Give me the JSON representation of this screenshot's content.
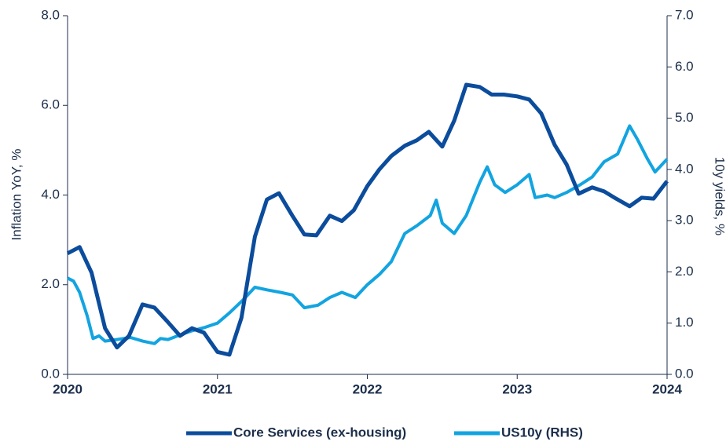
{
  "chart_data": {
    "type": "line",
    "y_label": "Inflation YoY, %",
    "y2_label": "10y yields, %",
    "xlim": [
      2020,
      2024
    ],
    "xticks": [
      2020,
      2021,
      2022,
      2023,
      2024
    ],
    "ylim": [
      0,
      8
    ],
    "yticks": [
      {
        "value": 0,
        "label": "0.0"
      },
      {
        "value": 2,
        "label": "2.0"
      },
      {
        "value": 4,
        "label": "4.0"
      },
      {
        "value": 6,
        "label": "6.0"
      },
      {
        "value": 8,
        "label": "8.0"
      }
    ],
    "y2lim": [
      0,
      7
    ],
    "y2ticks": [
      {
        "value": 0,
        "label": "0.0"
      },
      {
        "value": 1,
        "label": "1.0"
      },
      {
        "value": 2,
        "label": "2.0"
      },
      {
        "value": 3,
        "label": "3.0"
      },
      {
        "value": 4,
        "label": "4.0"
      },
      {
        "value": 5,
        "label": "5.0"
      },
      {
        "value": 6,
        "label": "6.0"
      },
      {
        "value": 7,
        "label": "7.0"
      }
    ],
    "series": [
      {
        "name": "Core Services (ex-housing)",
        "color": "#0b4c9c",
        "x": [
          2020.0,
          2020.08,
          2020.16,
          2020.25,
          2020.33,
          2020.41,
          2020.5,
          2020.58,
          2020.66,
          2020.75,
          2020.83,
          2020.91,
          2021.0,
          2021.08,
          2021.16,
          2021.25,
          2021.33,
          2021.41,
          2021.5,
          2021.58,
          2021.66,
          2021.75,
          2021.83,
          2021.91,
          2022.0,
          2022.08,
          2022.16,
          2022.25,
          2022.33,
          2022.41,
          2022.5,
          2022.58,
          2022.66,
          2022.75,
          2022.83,
          2022.91,
          2023.0,
          2023.08,
          2023.16,
          2023.25,
          2023.33,
          2023.41,
          2023.5,
          2023.58,
          2023.66,
          2023.75,
          2023.83,
          2023.91,
          2024.0
        ],
        "values": [
          2.7,
          2.84,
          2.27,
          1.03,
          0.6,
          0.86,
          1.56,
          1.49,
          1.2,
          0.86,
          1.03,
          0.93,
          0.5,
          0.44,
          1.26,
          3.07,
          3.9,
          4.04,
          3.54,
          3.12,
          3.1,
          3.54,
          3.42,
          3.66,
          4.2,
          4.57,
          4.87,
          5.1,
          5.22,
          5.41,
          5.08,
          5.66,
          6.46,
          6.41,
          6.24,
          6.24,
          6.2,
          6.13,
          5.82,
          5.12,
          4.68,
          4.03,
          4.17,
          4.08,
          3.92,
          3.75,
          3.94,
          3.92,
          4.31
        ]
      },
      {
        "name": "US10y (RHS)",
        "color": "#12a4e0",
        "axis": "y2",
        "x": [
          2020.0,
          2020.04,
          2020.08,
          2020.13,
          2020.17,
          2020.21,
          2020.25,
          2020.33,
          2020.42,
          2020.5,
          2020.58,
          2020.62,
          2020.67,
          2020.75,
          2020.83,
          2020.92,
          2021.0,
          2021.08,
          2021.17,
          2021.25,
          2021.33,
          2021.42,
          2021.5,
          2021.58,
          2021.67,
          2021.75,
          2021.83,
          2021.92,
          2022.0,
          2022.08,
          2022.16,
          2022.25,
          2022.33,
          2022.42,
          2022.46,
          2022.5,
          2022.58,
          2022.66,
          2022.75,
          2022.8,
          2022.85,
          2022.92,
          2023.0,
          2023.08,
          2023.12,
          2023.2,
          2023.25,
          2023.33,
          2023.42,
          2023.5,
          2023.58,
          2023.67,
          2023.75,
          2023.8,
          2023.87,
          2023.92,
          2024.0
        ],
        "values": [
          1.88,
          1.82,
          1.6,
          1.15,
          0.7,
          0.75,
          0.65,
          0.68,
          0.72,
          0.65,
          0.6,
          0.7,
          0.68,
          0.77,
          0.85,
          0.92,
          1.0,
          1.2,
          1.45,
          1.7,
          1.65,
          1.6,
          1.55,
          1.3,
          1.35,
          1.5,
          1.6,
          1.5,
          1.75,
          1.95,
          2.2,
          2.75,
          2.9,
          3.1,
          3.4,
          2.95,
          2.75,
          3.1,
          3.75,
          4.05,
          3.7,
          3.55,
          3.7,
          3.9,
          3.45,
          3.5,
          3.45,
          3.55,
          3.7,
          3.85,
          4.15,
          4.3,
          4.85,
          4.6,
          4.2,
          3.95,
          4.2
        ]
      }
    ]
  }
}
